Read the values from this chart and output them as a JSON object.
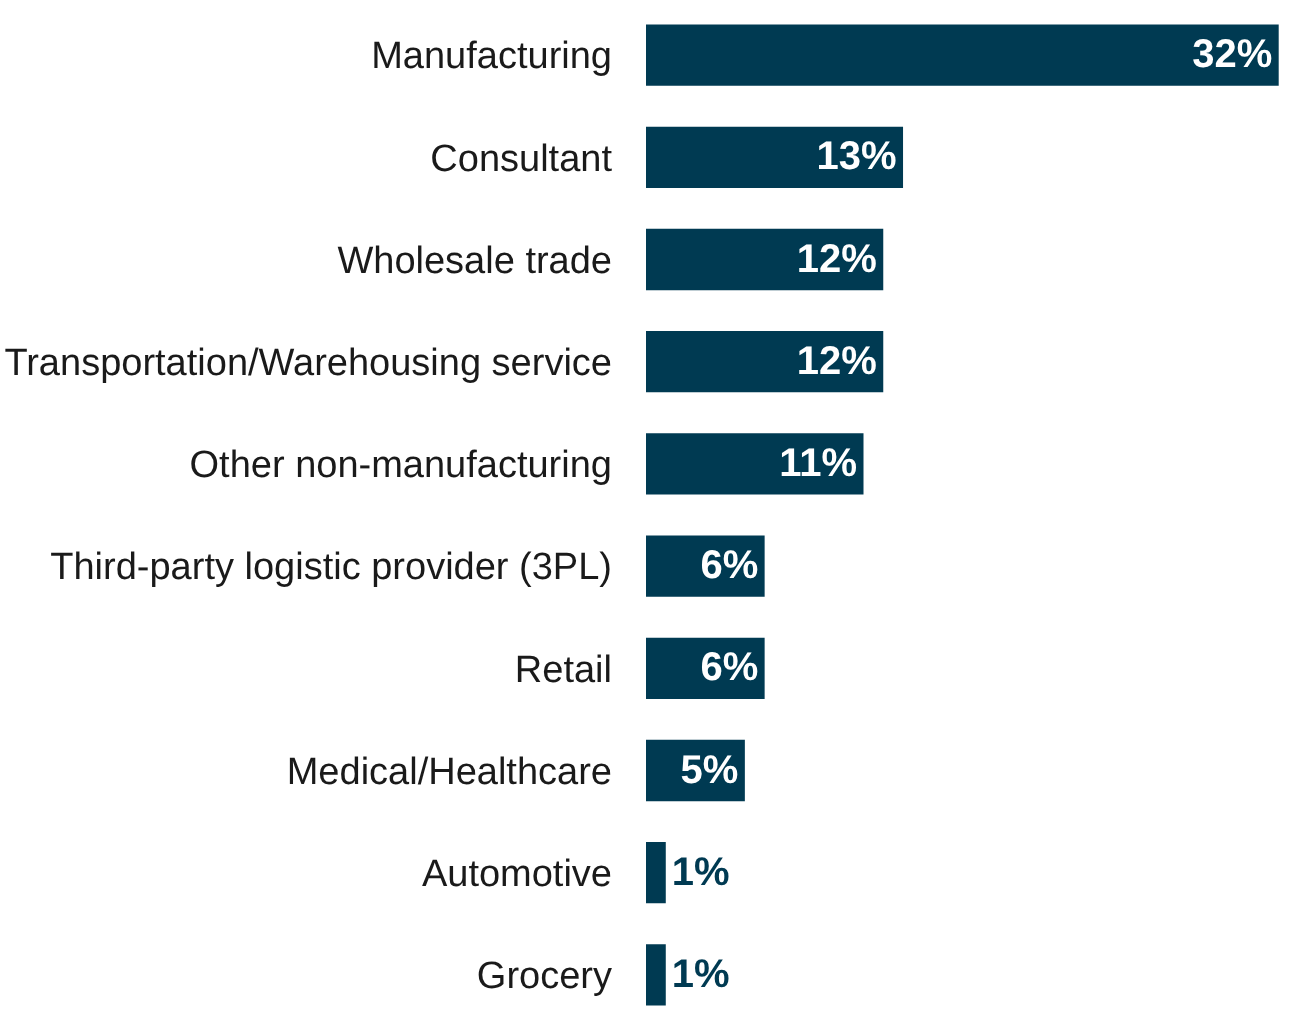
{
  "chart_data": {
    "type": "bar",
    "orientation": "horizontal",
    "categories": [
      "Manufacturing",
      "Consultant",
      "Wholesale trade",
      "Transportation/Warehousing service",
      "Other non-manufacturing",
      "Third-party logistic provider (3PL)",
      "Retail",
      "Medical/Healthcare",
      "Automotive",
      "Grocery"
    ],
    "values": [
      32,
      13,
      12,
      12,
      11,
      6,
      6,
      5,
      1,
      1
    ],
    "value_labels": [
      "32%",
      "13%",
      "12%",
      "12%",
      "11%",
      "6%",
      "6%",
      "5%",
      "1%",
      "1%"
    ],
    "color": "#003a52",
    "tick_labels": "y"
  }
}
